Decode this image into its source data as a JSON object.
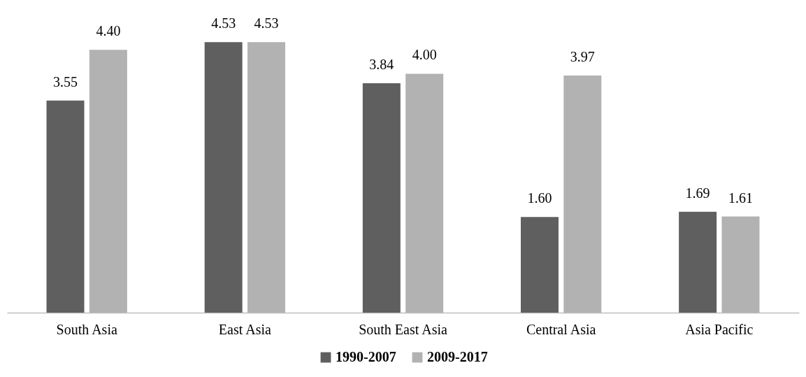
{
  "chart_data": {
    "type": "bar",
    "categories": [
      "South Asia",
      "East Asia",
      "South East Asia",
      "Central Asia",
      "Asia Pacific"
    ],
    "series": [
      {
        "name": "1990-2007",
        "color": "#5f5f5f",
        "values": [
          3.55,
          4.53,
          3.84,
          1.6,
          1.69
        ],
        "value_labels": [
          "3.55",
          "4.53",
          "3.84",
          "1.60",
          "1.69"
        ]
      },
      {
        "name": "2009-2017",
        "color": "#b2b2b2",
        "values": [
          4.4,
          4.53,
          4.0,
          3.97,
          1.61
        ],
        "value_labels": [
          "4.40",
          "4.53",
          "4.00",
          "3.97",
          "1.61"
        ]
      }
    ],
    "legend": "bottom",
    "grid": false
  }
}
